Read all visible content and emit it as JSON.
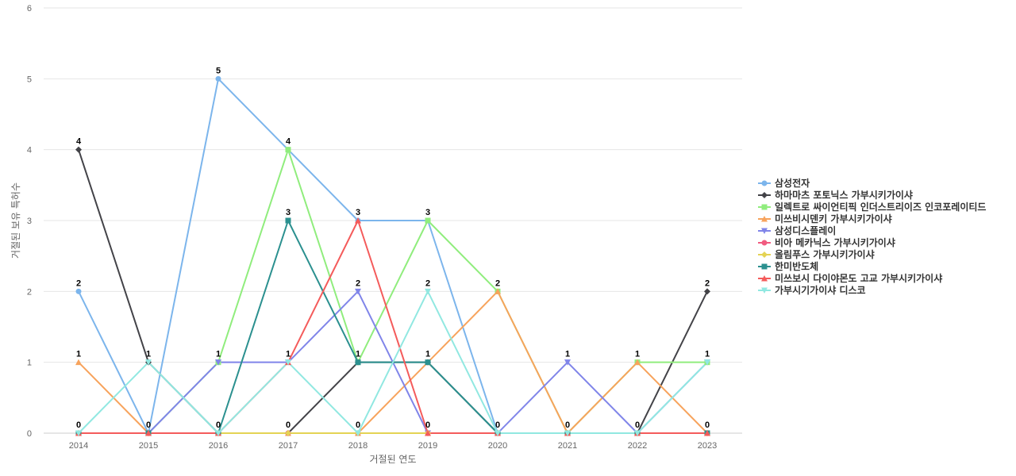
{
  "chart_data": {
    "type": "line",
    "xlabel": "거절된 연도",
    "ylabel": "거절된 보유 특허수",
    "ylim": [
      0,
      6
    ],
    "yticks": [
      0,
      1,
      2,
      3,
      4,
      5,
      6
    ],
    "grid": true,
    "legend_position": "right",
    "categories": [
      "2014",
      "2015",
      "2016",
      "2017",
      "2018",
      "2019",
      "2020",
      "2021",
      "2022",
      "2023"
    ],
    "series": [
      {
        "name": "삼성전자",
        "color": "#7cb5ec",
        "marker": "circle",
        "values": [
          2,
          0,
          5,
          4,
          3,
          3,
          0,
          0,
          0,
          0
        ]
      },
      {
        "name": "하마마츠 포토닉스 가부시키가이샤",
        "color": "#434348",
        "marker": "diamond",
        "values": [
          4,
          1,
          0,
          0,
          1,
          1,
          0,
          0,
          0,
          2
        ]
      },
      {
        "name": "일렉트로 싸이언티픽 인더스트리이즈 인코포레이티드",
        "color": "#90ed7d",
        "marker": "square",
        "values": [
          0,
          0,
          1,
          4,
          1,
          3,
          2,
          0,
          1,
          1
        ]
      },
      {
        "name": "미쓰비시덴키 가부시키가이샤",
        "color": "#f7a35c",
        "marker": "triangle",
        "values": [
          1,
          0,
          0,
          0,
          0,
          1,
          2,
          0,
          1,
          0
        ]
      },
      {
        "name": "삼성디스플레이",
        "color": "#8085e9",
        "marker": "triangle-down",
        "values": [
          0,
          0,
          1,
          1,
          2,
          0,
          0,
          1,
          0,
          1
        ]
      },
      {
        "name": "비아 메카닉스 가부시키가이샤",
        "color": "#f15c80",
        "marker": "circle",
        "values": [
          0,
          0,
          0,
          0,
          0,
          0,
          0,
          0,
          0,
          0
        ]
      },
      {
        "name": "올림푸스 가부시키가이샤",
        "color": "#e4d354",
        "marker": "diamond",
        "values": [
          0,
          0,
          0,
          0,
          0,
          0,
          0,
          0,
          0,
          0
        ]
      },
      {
        "name": "한미반도체",
        "color": "#2b908f",
        "marker": "square",
        "values": [
          0,
          0,
          0,
          3,
          1,
          1,
          0,
          0,
          0,
          0
        ]
      },
      {
        "name": "미쓰보시 다이야몬도 고교 가부시키가이샤",
        "color": "#f45b5b",
        "marker": "triangle",
        "values": [
          0,
          0,
          0,
          1,
          3,
          0,
          0,
          0,
          0,
          0
        ]
      },
      {
        "name": "가부시기가이샤 디스코",
        "color": "#91e8e1",
        "marker": "triangle-down",
        "values": [
          0,
          1,
          0,
          1,
          0,
          2,
          0,
          0,
          0,
          1
        ]
      }
    ],
    "point_labels": [
      {
        "x": "2014",
        "labels": [
          "4",
          "2",
          "1",
          "0"
        ]
      },
      {
        "x": "2015",
        "labels": [
          "1",
          "0"
        ]
      },
      {
        "x": "2016",
        "labels": [
          "5",
          "1",
          "0"
        ]
      },
      {
        "x": "2017",
        "labels": [
          "4",
          "3",
          "1",
          "0"
        ]
      },
      {
        "x": "2018",
        "labels": [
          "3",
          "2",
          "1",
          "0"
        ]
      },
      {
        "x": "2019",
        "labels": [
          "3",
          "2",
          "1",
          "0"
        ]
      },
      {
        "x": "2020",
        "labels": [
          "2",
          "0"
        ]
      },
      {
        "x": "2021",
        "labels": [
          "1",
          "0"
        ]
      },
      {
        "x": "2022",
        "labels": [
          "1",
          "0"
        ]
      },
      {
        "x": "2023",
        "labels": [
          "2",
          "1",
          "0"
        ]
      }
    ]
  }
}
